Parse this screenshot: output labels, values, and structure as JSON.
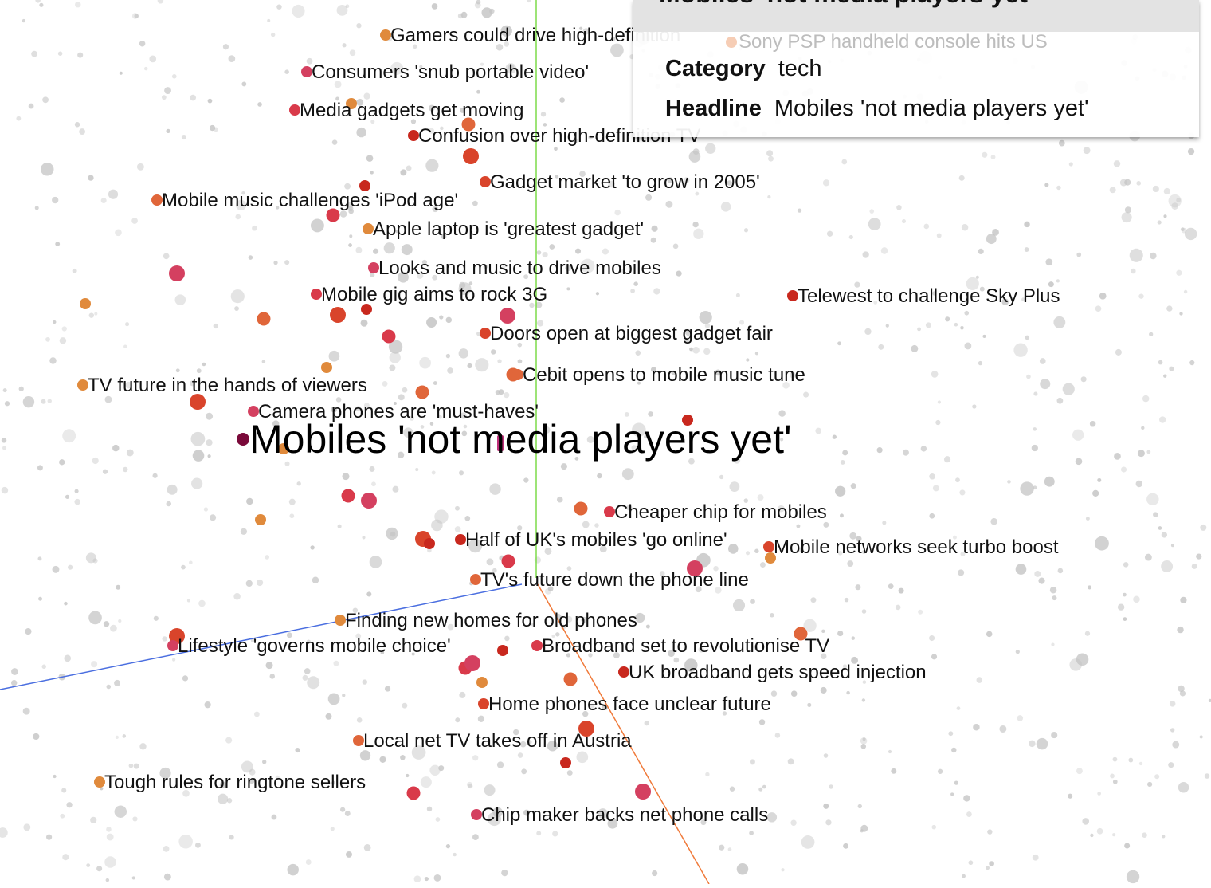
{
  "projector": {
    "points_colors": {
      "background": "#c8c8c8",
      "tech_palette": [
        "#e08a3c",
        "#e0663a",
        "#d9442b",
        "#c8281e",
        "#d93a4a",
        "#d44060"
      ],
      "selected": "#7a0a3a"
    },
    "axis_colors": {
      "x": "#4a6ee0",
      "y": "#7ddc4a",
      "z": "#f07a3a"
    },
    "faded_label": "Sony PSP handheld console hits US",
    "selected_label": "Mobiles 'not media players yet'",
    "labels": [
      "Gamers could drive high-definition",
      "Consumers 'snub portable video'",
      "Media gadgets get moving",
      "Confusion over high-definition TV",
      "Gadget market 'to grow in 2005'",
      "Mobile music challenges 'iPod age'",
      "Apple laptop is 'greatest gadget'",
      "Looks and music to drive mobiles",
      "Mobile gig aims to rock 3G",
      "Telewest to challenge Sky Plus",
      "Doors open at biggest gadget fair",
      "Cebit opens to mobile music tune",
      "TV future in the hands of viewers",
      "Camera phones are 'must-haves'",
      "Cheaper chip for mobiles",
      "Half of UK's mobiles 'go online'",
      "Mobile networks seek turbo boost",
      "TV's future down the phone line",
      "Finding new homes for old phones",
      "Lifestyle 'governs mobile choice'",
      "Broadband set to revolutionise TV",
      "UK broadband gets speed injection",
      "Home phones face unclear future",
      "Local net TV takes off in Austria",
      "Tough rules for ringtone sellers",
      "Chip maker backs net phone calls"
    ]
  },
  "tooltip": {
    "title": "Mobiles 'not media players yet'",
    "category_label": "Category",
    "category_value": "tech",
    "headline_label": "Headline",
    "headline_value": "Mobiles 'not media players yet'"
  }
}
